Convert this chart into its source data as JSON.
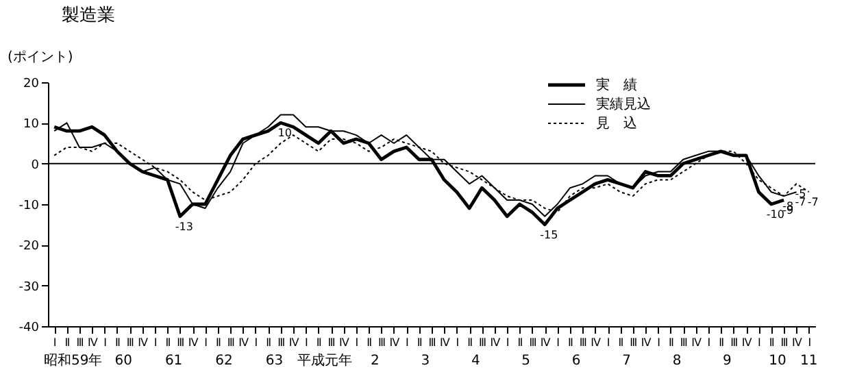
{
  "chart_data": {
    "type": "line",
    "title": "製造業",
    "ylabel": "(ポイント)",
    "categories": [
      "Ⅰ",
      "Ⅱ",
      "Ⅲ",
      "Ⅳ",
      "Ⅰ",
      "Ⅱ",
      "Ⅲ",
      "Ⅳ",
      "Ⅰ",
      "Ⅱ",
      "Ⅲ",
      "Ⅳ",
      "Ⅰ",
      "Ⅱ",
      "Ⅲ",
      "Ⅳ",
      "Ⅰ",
      "Ⅱ",
      "Ⅲ",
      "Ⅳ",
      "Ⅰ",
      "Ⅱ",
      "Ⅲ",
      "Ⅳ",
      "Ⅰ",
      "Ⅱ",
      "Ⅲ",
      "Ⅳ",
      "Ⅰ",
      "Ⅱ",
      "Ⅲ",
      "Ⅳ",
      "Ⅰ",
      "Ⅱ",
      "Ⅲ",
      "Ⅳ",
      "Ⅰ",
      "Ⅱ",
      "Ⅲ",
      "Ⅳ",
      "Ⅰ",
      "Ⅱ",
      "Ⅲ",
      "Ⅳ",
      "Ⅰ",
      "Ⅱ",
      "Ⅲ",
      "Ⅳ",
      "Ⅰ",
      "Ⅱ",
      "Ⅲ",
      "Ⅳ",
      "Ⅰ",
      "Ⅱ",
      "Ⅲ",
      "Ⅳ",
      "Ⅰ",
      "Ⅱ",
      "Ⅲ",
      "Ⅳ",
      "Ⅰ"
    ],
    "series": [
      {
        "name": "実　績",
        "color": "#000000",
        "line_style": "solid",
        "values": [
          9,
          8,
          8,
          9,
          7,
          3,
          0,
          -2,
          -3,
          -4,
          -13,
          -10,
          -10,
          -4,
          2,
          6,
          7,
          8,
          10,
          9,
          7,
          5,
          8,
          5,
          6,
          5,
          1,
          3,
          4,
          1,
          1,
          -4,
          -7,
          -11,
          -6,
          -9,
          -13,
          -10,
          -12,
          -15,
          -11,
          -9,
          -7,
          -5,
          -4,
          -5,
          -6,
          -2,
          -3,
          -3,
          0,
          1,
          2,
          3,
          2,
          2,
          -7,
          -10,
          -9,
          null,
          null
        ],
        "value_labels": [
          null,
          null,
          null,
          null,
          null,
          null,
          null,
          null,
          null,
          null,
          "-13",
          null,
          null,
          null,
          null,
          null,
          null,
          null,
          "10",
          null,
          null,
          null,
          null,
          null,
          null,
          null,
          null,
          null,
          null,
          null,
          null,
          null,
          null,
          null,
          null,
          null,
          null,
          null,
          null,
          "-15",
          null,
          null,
          null,
          null,
          null,
          null,
          null,
          null,
          null,
          null,
          null,
          null,
          null,
          null,
          null,
          null,
          null,
          "-10",
          "-9",
          null,
          null
        ]
      },
      {
        "name": "実績見込",
        "color": "#000000",
        "line_style": "solid",
        "values": [
          8,
          10,
          4,
          4,
          5,
          3,
          0,
          -2,
          -1,
          -4,
          -5,
          -10,
          -11,
          -6,
          -2,
          5,
          7,
          9,
          12,
          12,
          9,
          9,
          8,
          8,
          7,
          5,
          7,
          5,
          7,
          4,
          1,
          1,
          -2,
          -5,
          -3,
          -6,
          -9,
          -9,
          -10,
          -13,
          -10,
          -6,
          -5,
          -3,
          -3,
          -5,
          -6,
          -3,
          -2,
          -2,
          1,
          2,
          3,
          3,
          2,
          2,
          -3,
          -7,
          -8,
          -7,
          null
        ],
        "value_labels": [
          null,
          null,
          null,
          null,
          null,
          null,
          null,
          null,
          null,
          null,
          null,
          null,
          null,
          null,
          null,
          null,
          null,
          null,
          null,
          null,
          null,
          null,
          null,
          null,
          null,
          null,
          null,
          null,
          null,
          null,
          null,
          null,
          null,
          null,
          null,
          null,
          null,
          null,
          null,
          null,
          null,
          null,
          null,
          null,
          null,
          null,
          null,
          null,
          null,
          null,
          null,
          null,
          null,
          null,
          null,
          null,
          null,
          null,
          "-8",
          "-7",
          null
        ]
      },
      {
        "name": "見　込",
        "color": "#000000",
        "line_style": "dotted",
        "values": [
          2,
          4,
          4,
          3,
          5,
          5,
          3,
          1,
          -1,
          -2,
          -4,
          -7,
          -9,
          -8,
          -7,
          -4,
          0,
          2,
          5,
          7,
          5,
          3,
          6,
          6,
          5,
          3,
          4,
          6,
          5,
          4,
          3,
          0,
          -1,
          -2,
          -4,
          -6,
          -8,
          -9,
          -9,
          -11,
          -12,
          -8,
          -6,
          -6,
          -5,
          -7,
          -8,
          -5,
          -4,
          -4,
          -2,
          0,
          2,
          3,
          3,
          0,
          -4,
          -6,
          -8,
          -5,
          -7
        ],
        "value_labels": [
          null,
          null,
          null,
          null,
          null,
          null,
          null,
          null,
          null,
          null,
          null,
          null,
          null,
          null,
          null,
          null,
          null,
          null,
          null,
          null,
          null,
          null,
          null,
          null,
          null,
          null,
          null,
          null,
          null,
          null,
          null,
          null,
          null,
          null,
          null,
          null,
          null,
          null,
          null,
          null,
          null,
          null,
          null,
          null,
          null,
          null,
          null,
          null,
          null,
          null,
          null,
          null,
          null,
          null,
          null,
          null,
          null,
          null,
          null,
          "-5",
          "-7"
        ]
      }
    ],
    "ylim": [
      -40,
      20
    ],
    "yticks": [
      -40,
      -30,
      -20,
      -10,
      0,
      10,
      20
    ],
    "ref_lines": [
      {
        "axis": "y",
        "value": 0,
        "color": "#000000"
      }
    ],
    "annotations": [
      "昭和59年",
      "60",
      "61",
      "62",
      "63",
      "平成元年",
      "2",
      "3",
      "4",
      "5",
      "6",
      "7",
      "8",
      "9",
      "10",
      "11"
    ],
    "legend": "top right",
    "grid": false,
    "marker": "none"
  }
}
